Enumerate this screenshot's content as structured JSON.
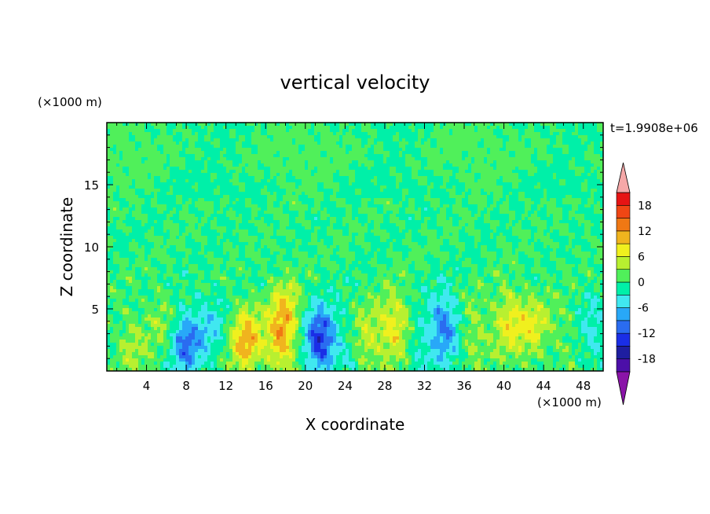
{
  "chart_data": {
    "type": "heatmap",
    "title": "vertical velocity",
    "xlabel": "X coordinate",
    "ylabel": "Z coordinate",
    "x_unit": "(×1000 m)",
    "y_unit": "(×1000 m)",
    "time_label": "t=1.9908e+06",
    "xlim": [
      0,
      50
    ],
    "ylim": [
      0,
      20
    ],
    "x_ticks": [
      4,
      8,
      12,
      16,
      20,
      24,
      28,
      32,
      36,
      40,
      44,
      48
    ],
    "y_ticks": [
      5,
      10,
      15
    ],
    "colorbar": {
      "levels": [
        -21,
        -18,
        -15,
        -12,
        -9,
        -6,
        -3,
        0,
        3,
        6,
        9,
        12,
        15,
        18,
        21
      ],
      "labels": [
        "18",
        "12",
        "6",
        "0",
        "-6",
        "-12",
        "-18"
      ],
      "colors": [
        "#4c0fa8",
        "#1e1ea0",
        "#1a2ee6",
        "#2a6cf0",
        "#28a8f8",
        "#40e8f0",
        "#00f0a8",
        "#50f05a",
        "#b8f030",
        "#f0f01e",
        "#f0b41e",
        "#f07814",
        "#f04614",
        "#e61414"
      ],
      "under_color": "#8a14a8",
      "over_color": "#f5a8a8"
    },
    "field_features": [
      {
        "x": 2.5,
        "z": 2.0,
        "w": 4
      },
      {
        "x": 5.5,
        "z": 4.0,
        "w": 3
      },
      {
        "x": 8.0,
        "z": 2.2,
        "w": -10
      },
      {
        "x": 10.5,
        "z": 3.5,
        "w": -4
      },
      {
        "x": 14.0,
        "z": 2.5,
        "w": 11
      },
      {
        "x": 17.5,
        "z": 2.5,
        "w": 9
      },
      {
        "x": 18.0,
        "z": 5.0,
        "w": 6
      },
      {
        "x": 21.5,
        "z": 2.5,
        "w": -14
      },
      {
        "x": 24.5,
        "z": 2.0,
        "w": -3
      },
      {
        "x": 26.0,
        "z": 2.5,
        "w": 6
      },
      {
        "x": 29.0,
        "z": 3.5,
        "w": 8
      },
      {
        "x": 31.5,
        "z": 2.0,
        "w": -3
      },
      {
        "x": 34.0,
        "z": 3.5,
        "w": -10
      },
      {
        "x": 37.0,
        "z": 3.0,
        "w": 4
      },
      {
        "x": 40.5,
        "z": 4.0,
        "w": 7
      },
      {
        "x": 43.0,
        "z": 3.5,
        "w": 6
      },
      {
        "x": 46.0,
        "z": 3.0,
        "w": 2
      },
      {
        "x": 49.0,
        "z": 3.0,
        "w": -4
      }
    ]
  }
}
